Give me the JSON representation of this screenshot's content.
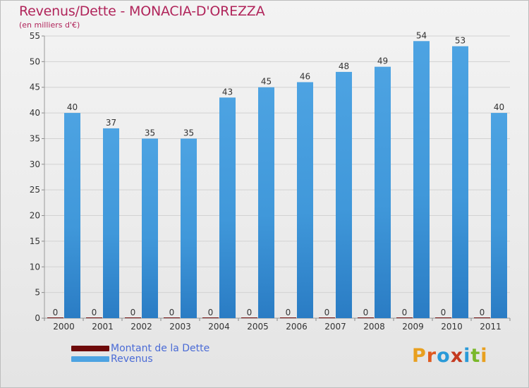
{
  "title": "Revenus/Dette - MONACIA-D'OREZZA",
  "subtitle": "(en milliers d'€)",
  "colors": {
    "title": "#b0245a",
    "dette": "#6e0a0a",
    "revenus": "#4da3e2",
    "revenus_dark": "#2a7cc4",
    "legend_text": "#4a6bd6"
  },
  "legend": {
    "items": [
      {
        "label": "Montant de la Dette",
        "color": "#6e0a0a"
      },
      {
        "label": "Revenus",
        "color": "#4da3e2"
      }
    ]
  },
  "logo": {
    "text": "Proxiti",
    "colors": [
      "#e8a020",
      "#e05a20",
      "#2a9ad8",
      "#c43a20",
      "#2a9ad8",
      "#7ab82a",
      "#e8a020"
    ]
  },
  "chart_data": {
    "type": "bar",
    "title": "Revenus/Dette - MONACIA-D'OREZZA",
    "subtitle": "(en milliers d'€)",
    "categories": [
      "2000",
      "2001",
      "2002",
      "2003",
      "2004",
      "2005",
      "2006",
      "2007",
      "2008",
      "2009",
      "2010",
      "2011"
    ],
    "series": [
      {
        "name": "Montant de la Dette",
        "values": [
          0,
          0,
          0,
          0,
          0,
          0,
          0,
          0,
          0,
          0,
          0,
          0
        ]
      },
      {
        "name": "Revenus",
        "values": [
          40,
          37,
          35,
          35,
          43,
          45,
          46,
          48,
          49,
          54,
          53,
          40
        ]
      }
    ],
    "ylim": [
      0,
      55
    ],
    "yticks": [
      0,
      5,
      10,
      15,
      20,
      25,
      30,
      35,
      40,
      45,
      50,
      55
    ],
    "grid": true,
    "legend_position": "bottom-left"
  }
}
